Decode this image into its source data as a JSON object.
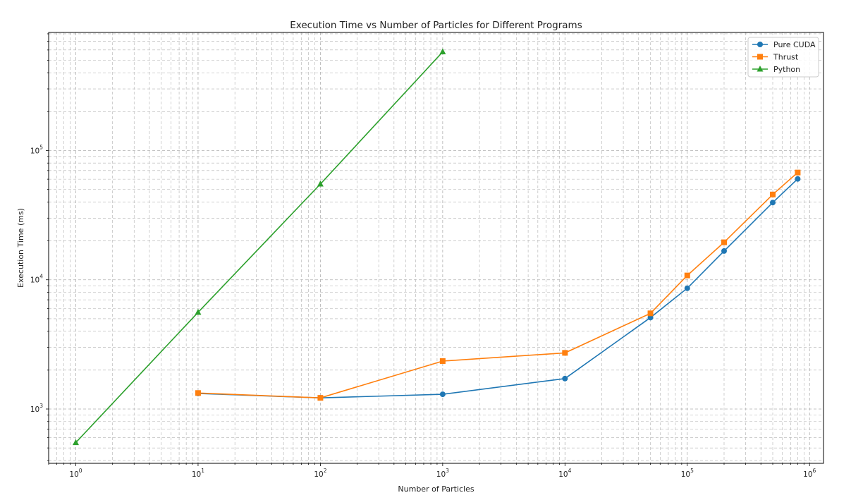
{
  "chart_data": {
    "type": "line",
    "title": "Execution Time vs Number of Particles for Different Programs",
    "xlabel": "Number of Particles",
    "ylabel": "Execution Time (ms)",
    "x_scale": "log",
    "y_scale": "log",
    "xlim": [
      0.6,
      1300000
    ],
    "ylim": [
      380,
      820000
    ],
    "grid": true,
    "legend_position": "top-right",
    "x_ticks": [
      {
        "base": "10",
        "exp": "0",
        "value": 1
      },
      {
        "base": "10",
        "exp": "1",
        "value": 10
      },
      {
        "base": "10",
        "exp": "2",
        "value": 100
      },
      {
        "base": "10",
        "exp": "3",
        "value": 1000
      },
      {
        "base": "10",
        "exp": "4",
        "value": 10000
      },
      {
        "base": "10",
        "exp": "5",
        "value": 100000
      },
      {
        "base": "10",
        "exp": "6",
        "value": 1000000
      }
    ],
    "y_ticks": [
      {
        "base": "10",
        "exp": "3",
        "value": 1000
      },
      {
        "base": "10",
        "exp": "4",
        "value": 10000
      },
      {
        "base": "10",
        "exp": "5",
        "value": 100000
      }
    ],
    "series": [
      {
        "name": "Pure CUDA",
        "color": "#1f77b4",
        "marker": "circle",
        "x": [
          10,
          100,
          1000,
          10000,
          50000,
          100000,
          200000,
          500000,
          800000
        ],
        "y": [
          1320,
          1220,
          1300,
          1720,
          5100,
          8600,
          16700,
          39600,
          60300
        ]
      },
      {
        "name": "Thrust",
        "color": "#ff7f0e",
        "marker": "square",
        "x": [
          10,
          100,
          1000,
          10000,
          50000,
          100000,
          200000,
          500000,
          800000
        ],
        "y": [
          1330,
          1220,
          2350,
          2720,
          5500,
          10800,
          19500,
          45700,
          67600
        ]
      },
      {
        "name": "Python",
        "color": "#2ca02c",
        "marker": "triangle",
        "x": [
          1,
          10,
          100,
          1000
        ],
        "y": [
          550,
          5600,
          55000,
          580000
        ]
      }
    ]
  }
}
